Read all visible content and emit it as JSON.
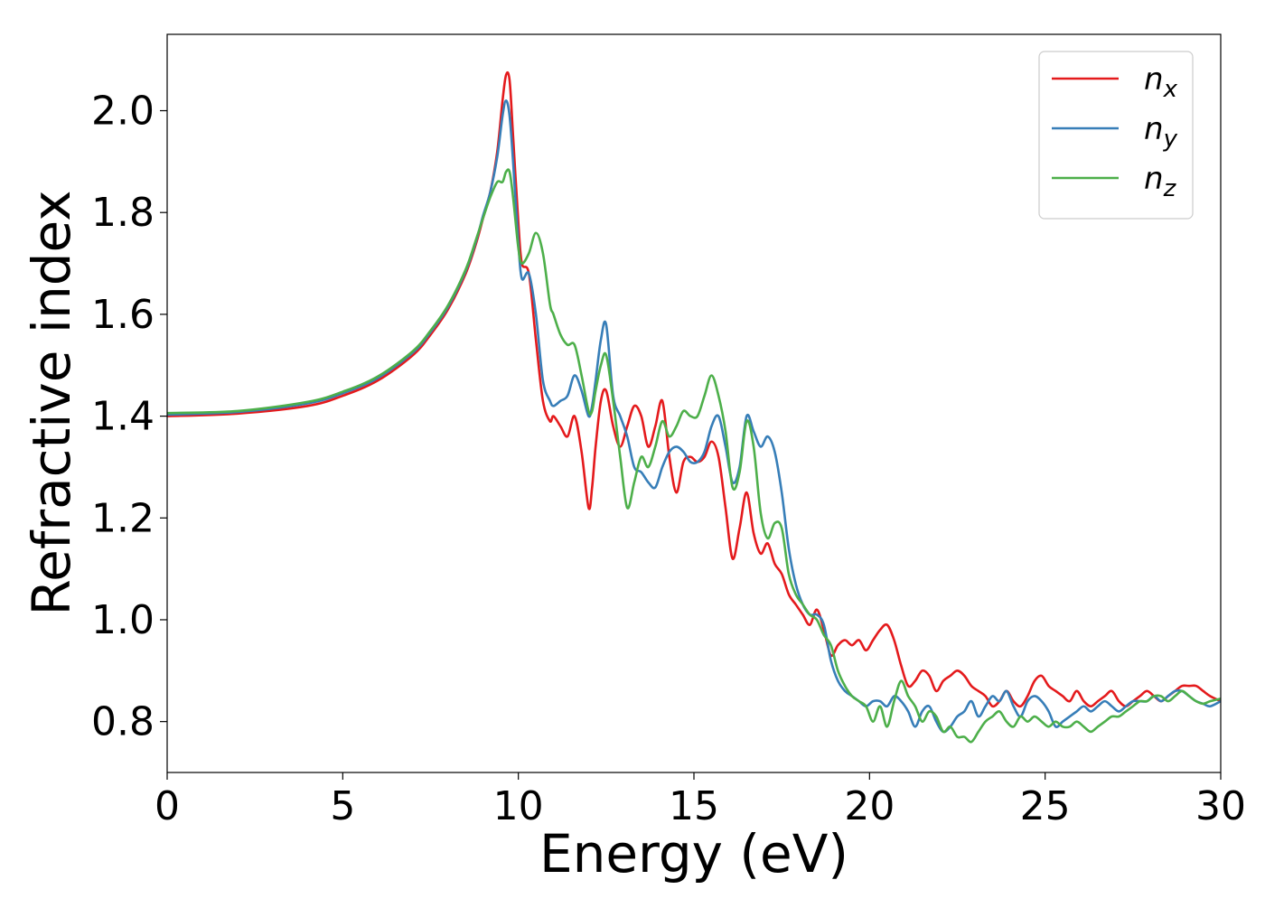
{
  "chart_data": {
    "type": "line",
    "title": "",
    "xlabel": "Energy (eV)",
    "ylabel": "Refractive index",
    "xlim": [
      0,
      30
    ],
    "ylim": [
      0.7,
      2.15
    ],
    "xticks": [
      0,
      5,
      10,
      15,
      20,
      25,
      30
    ],
    "xtick_labels": [
      "0",
      "5",
      "10",
      "15",
      "20",
      "25",
      "30"
    ],
    "yticks": [
      0.8,
      1.0,
      1.2,
      1.4,
      1.6,
      1.8,
      2.0
    ],
    "ytick_labels": [
      "0.8",
      "1.0",
      "1.2",
      "1.4",
      "1.6",
      "1.8",
      "2.0"
    ],
    "grid": false,
    "legend_position": "top-right",
    "series": [
      {
        "name": "n_x",
        "legend_base": "n",
        "legend_sub": "x",
        "color": "#e41a1c",
        "x": [
          0,
          2,
          4,
          5,
          6,
          7,
          7.5,
          8,
          8.5,
          8.8,
          9.0,
          9.2,
          9.4,
          9.55,
          9.65,
          9.75,
          9.85,
          10.0,
          10.1,
          10.3,
          10.5,
          10.7,
          10.9,
          11.0,
          11.2,
          11.4,
          11.6,
          11.8,
          12.0,
          12.1,
          12.2,
          12.35,
          12.5,
          12.7,
          12.9,
          13.1,
          13.3,
          13.5,
          13.7,
          13.9,
          14.1,
          14.3,
          14.5,
          14.7,
          14.9,
          15.1,
          15.3,
          15.5,
          15.7,
          15.9,
          16.1,
          16.3,
          16.5,
          16.7,
          16.9,
          17.1,
          17.3,
          17.5,
          17.7,
          17.9,
          18.1,
          18.3,
          18.5,
          18.7,
          18.9,
          19.1,
          19.3,
          19.5,
          19.7,
          19.9,
          20.1,
          20.3,
          20.5,
          20.7,
          20.9,
          21.1,
          21.3,
          21.5,
          21.7,
          21.9,
          22.1,
          22.3,
          22.5,
          22.7,
          22.9,
          23.1,
          23.3,
          23.5,
          23.7,
          23.9,
          24.1,
          24.3,
          24.5,
          24.7,
          24.9,
          25.1,
          25.3,
          25.5,
          25.7,
          25.9,
          26.1,
          26.3,
          26.5,
          26.7,
          26.9,
          27.1,
          27.3,
          27.5,
          27.7,
          27.9,
          28.1,
          28.3,
          28.5,
          28.7,
          28.9,
          29.1,
          29.3,
          29.5,
          29.7,
          30.0
        ],
        "y": [
          1.4,
          1.405,
          1.42,
          1.44,
          1.47,
          1.52,
          1.56,
          1.61,
          1.68,
          1.74,
          1.79,
          1.84,
          1.92,
          2.02,
          2.07,
          2.06,
          1.95,
          1.78,
          1.7,
          1.68,
          1.55,
          1.43,
          1.39,
          1.4,
          1.38,
          1.36,
          1.4,
          1.33,
          1.22,
          1.26,
          1.34,
          1.43,
          1.45,
          1.38,
          1.34,
          1.38,
          1.42,
          1.4,
          1.34,
          1.38,
          1.43,
          1.32,
          1.25,
          1.31,
          1.32,
          1.31,
          1.32,
          1.35,
          1.32,
          1.22,
          1.12,
          1.18,
          1.25,
          1.17,
          1.13,
          1.15,
          1.11,
          1.09,
          1.05,
          1.03,
          1.01,
          0.99,
          1.02,
          0.98,
          0.93,
          0.95,
          0.96,
          0.95,
          0.96,
          0.94,
          0.96,
          0.98,
          0.99,
          0.96,
          0.91,
          0.87,
          0.88,
          0.9,
          0.89,
          0.86,
          0.88,
          0.89,
          0.9,
          0.89,
          0.87,
          0.86,
          0.85,
          0.83,
          0.84,
          0.86,
          0.84,
          0.83,
          0.85,
          0.88,
          0.89,
          0.87,
          0.86,
          0.85,
          0.84,
          0.86,
          0.84,
          0.83,
          0.84,
          0.85,
          0.86,
          0.84,
          0.83,
          0.84,
          0.85,
          0.86,
          0.85,
          0.84,
          0.85,
          0.86,
          0.87,
          0.87,
          0.87,
          0.86,
          0.85,
          0.84
        ]
      },
      {
        "name": "n_y",
        "legend_base": "n",
        "legend_sub": "y",
        "color": "#377eb8",
        "x": [
          0,
          2,
          4,
          5,
          6,
          7,
          7.5,
          8,
          8.5,
          8.8,
          9.0,
          9.2,
          9.4,
          9.55,
          9.65,
          9.75,
          9.85,
          10.0,
          10.1,
          10.3,
          10.5,
          10.7,
          10.9,
          11.0,
          11.2,
          11.4,
          11.6,
          11.8,
          12.0,
          12.1,
          12.2,
          12.35,
          12.5,
          12.7,
          12.9,
          13.1,
          13.3,
          13.5,
          13.7,
          13.9,
          14.1,
          14.3,
          14.5,
          14.7,
          14.9,
          15.1,
          15.3,
          15.5,
          15.7,
          15.9,
          16.1,
          16.3,
          16.5,
          16.7,
          16.9,
          17.1,
          17.3,
          17.5,
          17.7,
          17.9,
          18.1,
          18.3,
          18.5,
          18.7,
          18.9,
          19.1,
          19.3,
          19.5,
          19.7,
          19.9,
          20.1,
          20.3,
          20.5,
          20.7,
          20.9,
          21.1,
          21.3,
          21.5,
          21.7,
          21.9,
          22.1,
          22.3,
          22.5,
          22.7,
          22.9,
          23.1,
          23.3,
          23.5,
          23.7,
          23.9,
          24.1,
          24.3,
          24.5,
          24.7,
          24.9,
          25.1,
          25.3,
          25.5,
          25.7,
          25.9,
          26.1,
          26.3,
          26.5,
          26.7,
          26.9,
          27.1,
          27.3,
          27.5,
          27.7,
          27.9,
          28.1,
          28.3,
          28.5,
          28.7,
          28.9,
          29.1,
          29.3,
          29.5,
          29.7,
          30.0
        ],
        "y": [
          1.403,
          1.408,
          1.425,
          1.445,
          1.475,
          1.525,
          1.565,
          1.615,
          1.685,
          1.745,
          1.795,
          1.84,
          1.91,
          1.99,
          2.02,
          1.99,
          1.9,
          1.74,
          1.67,
          1.68,
          1.6,
          1.47,
          1.43,
          1.42,
          1.43,
          1.44,
          1.48,
          1.45,
          1.4,
          1.42,
          1.47,
          1.55,
          1.58,
          1.44,
          1.4,
          1.36,
          1.3,
          1.29,
          1.27,
          1.26,
          1.3,
          1.33,
          1.34,
          1.33,
          1.31,
          1.31,
          1.33,
          1.38,
          1.4,
          1.34,
          1.27,
          1.3,
          1.4,
          1.37,
          1.34,
          1.36,
          1.33,
          1.25,
          1.14,
          1.07,
          1.03,
          1.01,
          1.01,
          0.99,
          0.92,
          0.88,
          0.86,
          0.85,
          0.84,
          0.83,
          0.84,
          0.84,
          0.83,
          0.85,
          0.84,
          0.82,
          0.79,
          0.82,
          0.83,
          0.8,
          0.78,
          0.79,
          0.81,
          0.82,
          0.84,
          0.81,
          0.83,
          0.85,
          0.84,
          0.86,
          0.83,
          0.81,
          0.84,
          0.85,
          0.84,
          0.82,
          0.79,
          0.8,
          0.81,
          0.82,
          0.83,
          0.82,
          0.83,
          0.84,
          0.83,
          0.82,
          0.83,
          0.84,
          0.84,
          0.84,
          0.85,
          0.84,
          0.85,
          0.86,
          0.86,
          0.85,
          0.84,
          0.835,
          0.83,
          0.84
        ]
      },
      {
        "name": "n_z",
        "legend_base": "n",
        "legend_sub": "z",
        "color": "#4daf4a",
        "x": [
          0,
          2,
          4,
          5,
          6,
          7,
          7.5,
          8,
          8.5,
          8.8,
          9.0,
          9.2,
          9.4,
          9.55,
          9.65,
          9.75,
          9.85,
          10.0,
          10.1,
          10.3,
          10.5,
          10.7,
          10.9,
          11.0,
          11.2,
          11.4,
          11.6,
          11.8,
          12.0,
          12.1,
          12.2,
          12.35,
          12.5,
          12.7,
          12.9,
          13.1,
          13.3,
          13.5,
          13.7,
          13.9,
          14.1,
          14.3,
          14.5,
          14.7,
          14.9,
          15.1,
          15.3,
          15.5,
          15.7,
          15.9,
          16.1,
          16.3,
          16.5,
          16.7,
          16.9,
          17.1,
          17.3,
          17.5,
          17.7,
          17.9,
          18.1,
          18.3,
          18.5,
          18.7,
          18.9,
          19.1,
          19.3,
          19.5,
          19.7,
          19.9,
          20.1,
          20.3,
          20.5,
          20.7,
          20.9,
          21.1,
          21.3,
          21.5,
          21.7,
          21.9,
          22.1,
          22.3,
          22.5,
          22.7,
          22.9,
          23.1,
          23.3,
          23.5,
          23.7,
          23.9,
          24.1,
          24.3,
          24.5,
          24.7,
          24.9,
          25.1,
          25.3,
          25.5,
          25.7,
          25.9,
          26.1,
          26.3,
          26.5,
          26.7,
          26.9,
          27.1,
          27.3,
          27.5,
          27.7,
          27.9,
          28.1,
          28.3,
          28.5,
          28.7,
          28.9,
          29.1,
          29.3,
          29.5,
          29.7,
          30.0
        ],
        "y": [
          1.406,
          1.41,
          1.428,
          1.448,
          1.478,
          1.528,
          1.568,
          1.618,
          1.688,
          1.748,
          1.79,
          1.83,
          1.86,
          1.86,
          1.88,
          1.88,
          1.83,
          1.73,
          1.7,
          1.72,
          1.76,
          1.72,
          1.62,
          1.6,
          1.56,
          1.54,
          1.54,
          1.48,
          1.41,
          1.41,
          1.45,
          1.5,
          1.52,
          1.43,
          1.32,
          1.22,
          1.27,
          1.32,
          1.3,
          1.34,
          1.39,
          1.36,
          1.38,
          1.41,
          1.4,
          1.4,
          1.44,
          1.48,
          1.44,
          1.37,
          1.26,
          1.29,
          1.39,
          1.34,
          1.21,
          1.16,
          1.19,
          1.18,
          1.09,
          1.05,
          1.03,
          1.01,
          1.0,
          0.97,
          0.95,
          0.9,
          0.87,
          0.85,
          0.84,
          0.83,
          0.8,
          0.83,
          0.79,
          0.84,
          0.88,
          0.85,
          0.83,
          0.8,
          0.82,
          0.81,
          0.78,
          0.79,
          0.77,
          0.77,
          0.76,
          0.78,
          0.8,
          0.81,
          0.82,
          0.8,
          0.79,
          0.81,
          0.8,
          0.81,
          0.8,
          0.79,
          0.8,
          0.79,
          0.79,
          0.8,
          0.79,
          0.78,
          0.79,
          0.8,
          0.81,
          0.81,
          0.82,
          0.83,
          0.84,
          0.84,
          0.85,
          0.85,
          0.84,
          0.85,
          0.86,
          0.85,
          0.84,
          0.835,
          0.84,
          0.845
        ]
      }
    ]
  }
}
